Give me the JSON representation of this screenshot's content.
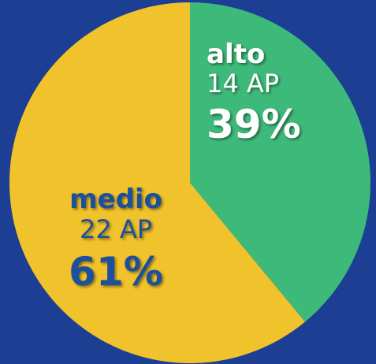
{
  "chart_data": {
    "type": "pie",
    "categories": [
      "alto",
      "medio"
    ],
    "values": [
      39,
      61
    ],
    "value_labels": [
      "39%",
      "61%"
    ],
    "sub_labels": [
      "14 AP",
      "22 AP"
    ],
    "colors": [
      "#3dba7a",
      "#f0c22b"
    ],
    "label_colors": [
      "#ffffff",
      "#1b4f9c"
    ]
  }
}
